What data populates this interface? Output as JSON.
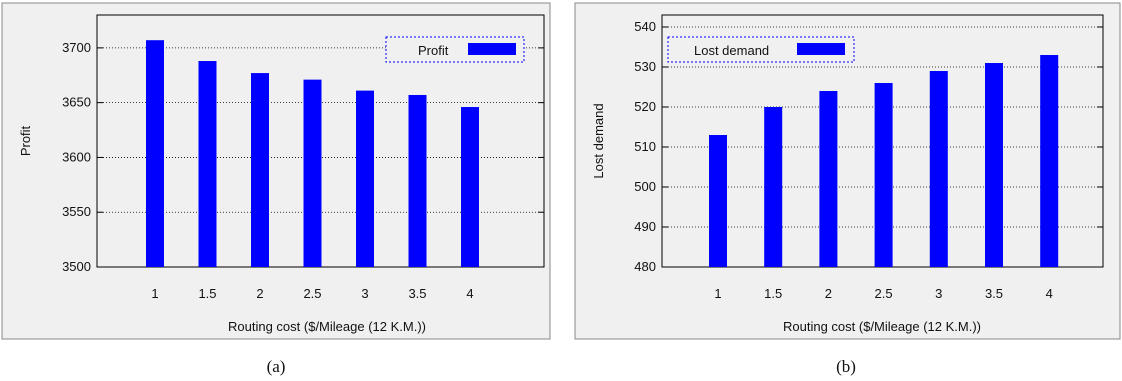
{
  "figure": {
    "panels": [
      {
        "caption": "(a)"
      },
      {
        "caption": "(b)"
      }
    ]
  },
  "chart_data": [
    {
      "type": "bar",
      "title": "",
      "xlabel": "Routing cost ($/Mileage (12 K.M.))",
      "ylabel": "Profit",
      "categories": [
        "1",
        "1.5",
        "2",
        "2.5",
        "3",
        "3.5",
        "4"
      ],
      "series": [
        {
          "name": "Profit",
          "values": [
            3707,
            3688,
            3677,
            3671,
            3661,
            3657,
            3646
          ]
        }
      ],
      "ylim": [
        3500,
        3730
      ],
      "yticks": [
        3500,
        3550,
        3600,
        3650,
        3700
      ],
      "grid": true,
      "legend": "top-right",
      "bar_color": "#0000ff",
      "background": "#f0f0f0"
    },
    {
      "type": "bar",
      "title": "",
      "xlabel": "Routing cost ($/Mileage (12 K.M.))",
      "ylabel": "Lost demand",
      "categories": [
        "1",
        "1.5",
        "2",
        "2.5",
        "3",
        "3.5",
        "4"
      ],
      "series": [
        {
          "name": "Lost demand",
          "values": [
            513,
            520,
            524,
            526,
            529,
            531,
            533
          ]
        }
      ],
      "ylim": [
        480,
        543
      ],
      "yticks": [
        480,
        490,
        500,
        510,
        520,
        530,
        540
      ],
      "grid": true,
      "legend": "top-left",
      "bar_color": "#0000ff",
      "background": "#f0f0f0"
    }
  ]
}
